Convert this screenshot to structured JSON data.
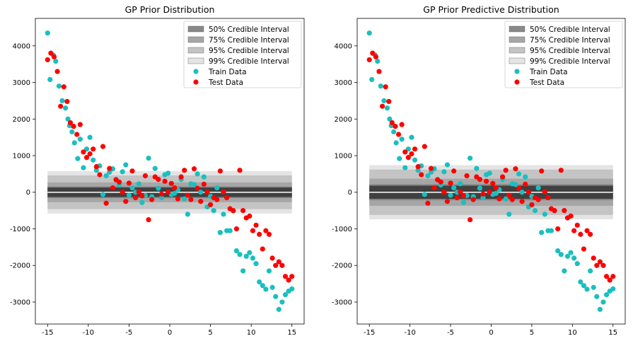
{
  "chart_data": [
    {
      "type": "scatter",
      "title": "GP Prior Distribution",
      "xlabel": "",
      "ylabel": "",
      "xlim": [
        -16.5,
        16.5
      ],
      "ylim": [
        -3600,
        4750
      ],
      "xticks": [
        -15,
        -10,
        -5,
        0,
        5,
        10,
        15
      ],
      "yticks": [
        -3000,
        -2000,
        -1000,
        0,
        1000,
        2000,
        3000,
        4000
      ],
      "grid": false,
      "legend_position": "top-right",
      "band_x_range": [
        -15,
        15
      ],
      "mean": 0,
      "mean_color": "#ffffff",
      "intervals": [
        {
          "label": "99% Credible Interval",
          "half_width": 580,
          "color": "#e4e4e4"
        },
        {
          "label": "95% Credible Interval",
          "half_width": 460,
          "color": "#c4c4c4"
        },
        {
          "label": "75% Credible Interval",
          "half_width": 270,
          "color": "#a6a6a6"
        },
        {
          "label": "50% Credible Interval",
          "half_width": 160,
          "color": "#888888"
        }
      ],
      "center_band": {
        "half_width": 130,
        "color": "#404040"
      },
      "legend": [
        {
          "label": "50% Credible Interval",
          "kind": "patch",
          "color": "#888888"
        },
        {
          "label": "75% Credible Interval",
          "kind": "patch",
          "color": "#a6a6a6"
        },
        {
          "label": "95% Credible Interval",
          "kind": "patch",
          "color": "#c4c4c4"
        },
        {
          "label": "99% Credible Interval",
          "kind": "patch",
          "color": "#e4e4e4"
        },
        {
          "label": "Train Data",
          "kind": "marker",
          "color": "#1abfbf"
        },
        {
          "label": "Test Data",
          "kind": "marker",
          "color": "#ff0000"
        }
      ],
      "series": [
        {
          "name": "Train Data",
          "color": "#1abfbf",
          "x": [
            -15.0,
            -14.7,
            -14.3,
            -14.0,
            -13.6,
            -13.2,
            -12.8,
            -12.5,
            -12.3,
            -12.0,
            -11.7,
            -11.3,
            -11.0,
            -10.6,
            -10.2,
            -9.8,
            -9.4,
            -9.0,
            -8.6,
            -8.2,
            -7.8,
            -7.4,
            -7.0,
            -6.6,
            -6.2,
            -5.8,
            -5.4,
            -5.0,
            -4.6,
            -4.2,
            -3.8,
            -3.4,
            -3.0,
            -2.6,
            -2.2,
            -1.8,
            -1.4,
            -1.0,
            -0.6,
            -0.2,
            0.2,
            0.6,
            1.0,
            1.4,
            1.8,
            2.2,
            2.6,
            3.0,
            3.4,
            3.8,
            4.2,
            4.6,
            5.0,
            5.4,
            5.8,
            6.2,
            6.6,
            7.0,
            7.4,
            7.8,
            8.2,
            8.6,
            9.0,
            9.4,
            9.8,
            10.2,
            10.6,
            11.0,
            11.4,
            11.8,
            12.2,
            12.6,
            13.0,
            13.4,
            13.8,
            14.2,
            14.6,
            15.0
          ],
          "y": [
            4350,
            3080,
            3750,
            3580,
            2900,
            2500,
            2300,
            2000,
            1820,
            1650,
            1350,
            920,
            1450,
            670,
            1180,
            1500,
            880,
            600,
            720,
            -60,
            450,
            550,
            640,
            350,
            200,
            560,
            750,
            -80,
            120,
            0,
            230,
            -280,
            -90,
            930,
            -120,
            650,
            110,
            -150,
            480,
            520,
            -60,
            -30,
            70,
            350,
            -180,
            -600,
            230,
            210,
            500,
            0,
            420,
            -400,
            -110,
            -500,
            120,
            -1100,
            -600,
            -1050,
            -1050,
            -510,
            -1600,
            -1700,
            -2150,
            -1750,
            -1650,
            -1800,
            -1950,
            -2450,
            -2550,
            -2650,
            -2150,
            -2600,
            -2850,
            -3200,
            -3000,
            -2800,
            -2700,
            -2640
          ]
        },
        {
          "name": "Test Data",
          "color": "#ff0000",
          "x": [
            -15.0,
            -14.6,
            -14.2,
            -13.8,
            -13.4,
            -13.0,
            -12.6,
            -12.2,
            -11.8,
            -11.4,
            -11.0,
            -10.6,
            -10.2,
            -9.8,
            -9.4,
            -9.0,
            -8.6,
            -8.2,
            -7.8,
            -7.4,
            -7.0,
            -6.6,
            -6.2,
            -5.8,
            -5.4,
            -5.0,
            -4.6,
            -4.2,
            -3.8,
            -3.4,
            -3.0,
            -2.6,
            -2.2,
            -1.8,
            -1.4,
            -1.0,
            -0.6,
            -0.2,
            0.2,
            0.6,
            1.0,
            1.4,
            1.8,
            2.2,
            2.6,
            3.0,
            3.4,
            3.8,
            4.2,
            4.6,
            5.0,
            5.4,
            5.8,
            6.2,
            6.6,
            7.0,
            7.4,
            7.8,
            8.2,
            8.6,
            9.0,
            9.4,
            9.8,
            10.2,
            10.6,
            11.0,
            11.4,
            11.8,
            12.2,
            12.6,
            13.0,
            13.4,
            13.8,
            14.2,
            14.6,
            15.0
          ],
          "y": [
            3620,
            3800,
            3700,
            3300,
            2350,
            2880,
            2480,
            1900,
            1800,
            1580,
            1850,
            1100,
            950,
            1050,
            1180,
            700,
            480,
            1250,
            -300,
            650,
            120,
            340,
            280,
            0,
            -250,
            250,
            580,
            -150,
            10,
            -100,
            450,
            -750,
            -200,
            420,
            350,
            -50,
            300,
            0,
            240,
            120,
            -180,
            420,
            600,
            -80,
            -200,
            640,
            110,
            -250,
            220,
            0,
            -340,
            -150,
            -200,
            580,
            10,
            -150,
            -450,
            -500,
            -1000,
            600,
            -500,
            -700,
            -650,
            -1050,
            -900,
            -1150,
            -1550,
            -1050,
            -1150,
            -1800,
            -2000,
            -1900,
            -2000,
            -2300,
            -2400,
            -2300
          ]
        }
      ]
    },
    {
      "type": "scatter",
      "title": "GP Prior Predictive Distribution",
      "xlabel": "",
      "ylabel": "",
      "xlim": [
        -16.5,
        16.5
      ],
      "ylim": [
        -3600,
        4750
      ],
      "xticks": [
        -15,
        -10,
        -5,
        0,
        5,
        10,
        15
      ],
      "yticks": [
        -3000,
        -2000,
        -1000,
        0,
        1000,
        2000,
        3000,
        4000
      ],
      "grid": false,
      "legend_position": "top-right",
      "band_x_range": [
        -15,
        15
      ],
      "mean": 0,
      "mean_color": "#ffffff",
      "intervals": [
        {
          "label": "99% Credible Interval",
          "half_width": 740,
          "color": "#e4e4e4"
        },
        {
          "label": "95% Credible Interval",
          "half_width": 620,
          "color": "#c4c4c4"
        },
        {
          "label": "75% Credible Interval",
          "half_width": 370,
          "color": "#a6a6a6"
        },
        {
          "label": "50% Credible Interval",
          "half_width": 220,
          "color": "#888888"
        }
      ],
      "center_band": {
        "half_width": 180,
        "color": "#404040"
      },
      "legend": [
        {
          "label": "50% Credible Interval",
          "kind": "patch",
          "color": "#888888"
        },
        {
          "label": "75% Credible Interval",
          "kind": "patch",
          "color": "#a6a6a6"
        },
        {
          "label": "95% Credible Interval",
          "kind": "patch",
          "color": "#c4c4c4"
        },
        {
          "label": "99% Credible Interval",
          "kind": "patch",
          "color": "#e4e4e4"
        },
        {
          "label": "Train Data",
          "kind": "marker",
          "color": "#1abfbf"
        },
        {
          "label": "Test Data",
          "kind": "marker",
          "color": "#ff0000"
        }
      ],
      "series": [
        {
          "name": "Train Data",
          "color": "#1abfbf",
          "x": [
            -15.0,
            -14.7,
            -14.3,
            -14.0,
            -13.6,
            -13.2,
            -12.8,
            -12.5,
            -12.3,
            -12.0,
            -11.7,
            -11.3,
            -11.0,
            -10.6,
            -10.2,
            -9.8,
            -9.4,
            -9.0,
            -8.6,
            -8.2,
            -7.8,
            -7.4,
            -7.0,
            -6.6,
            -6.2,
            -5.8,
            -5.4,
            -5.0,
            -4.6,
            -4.2,
            -3.8,
            -3.4,
            -3.0,
            -2.6,
            -2.2,
            -1.8,
            -1.4,
            -1.0,
            -0.6,
            -0.2,
            0.2,
            0.6,
            1.0,
            1.4,
            1.8,
            2.2,
            2.6,
            3.0,
            3.4,
            3.8,
            4.2,
            4.6,
            5.0,
            5.4,
            5.8,
            6.2,
            6.6,
            7.0,
            7.4,
            7.8,
            8.2,
            8.6,
            9.0,
            9.4,
            9.8,
            10.2,
            10.6,
            11.0,
            11.4,
            11.8,
            12.2,
            12.6,
            13.0,
            13.4,
            13.8,
            14.2,
            14.6,
            15.0
          ],
          "y": [
            4350,
            3080,
            3750,
            3580,
            2900,
            2500,
            2300,
            2000,
            1820,
            1650,
            1350,
            920,
            1450,
            670,
            1180,
            1500,
            880,
            600,
            720,
            -60,
            450,
            550,
            640,
            350,
            200,
            560,
            750,
            -80,
            120,
            0,
            230,
            -280,
            -90,
            930,
            -120,
            650,
            110,
            -150,
            480,
            520,
            -60,
            -30,
            70,
            350,
            -180,
            -600,
            230,
            210,
            500,
            0,
            420,
            -400,
            -110,
            -500,
            120,
            -1100,
            -600,
            -1050,
            -1050,
            -510,
            -1600,
            -1700,
            -2150,
            -1750,
            -1650,
            -1800,
            -1950,
            -2450,
            -2550,
            -2650,
            -2150,
            -2600,
            -2850,
            -3200,
            -3000,
            -2800,
            -2700,
            -2640
          ]
        },
        {
          "name": "Test Data",
          "color": "#ff0000",
          "x": [
            -15.0,
            -14.6,
            -14.2,
            -13.8,
            -13.4,
            -13.0,
            -12.6,
            -12.2,
            -11.8,
            -11.4,
            -11.0,
            -10.6,
            -10.2,
            -9.8,
            -9.4,
            -9.0,
            -8.6,
            -8.2,
            -7.8,
            -7.4,
            -7.0,
            -6.6,
            -6.2,
            -5.8,
            -5.4,
            -5.0,
            -4.6,
            -4.2,
            -3.8,
            -3.4,
            -3.0,
            -2.6,
            -2.2,
            -1.8,
            -1.4,
            -1.0,
            -0.6,
            -0.2,
            0.2,
            0.6,
            1.0,
            1.4,
            1.8,
            2.2,
            2.6,
            3.0,
            3.4,
            3.8,
            4.2,
            4.6,
            5.0,
            5.4,
            5.8,
            6.2,
            6.6,
            7.0,
            7.4,
            7.8,
            8.2,
            8.6,
            9.0,
            9.4,
            9.8,
            10.2,
            10.6,
            11.0,
            11.4,
            11.8,
            12.2,
            12.6,
            13.0,
            13.4,
            13.8,
            14.2,
            14.6,
            15.0
          ],
          "y": [
            3620,
            3800,
            3700,
            3300,
            2350,
            2880,
            2480,
            1900,
            1800,
            1580,
            1850,
            1100,
            950,
            1050,
            1180,
            700,
            480,
            1250,
            -300,
            650,
            120,
            340,
            280,
            0,
            -250,
            250,
            580,
            -150,
            10,
            -100,
            450,
            -750,
            -200,
            420,
            350,
            -50,
            300,
            0,
            240,
            120,
            -180,
            420,
            600,
            -80,
            -200,
            640,
            110,
            -250,
            220,
            0,
            -340,
            -150,
            -200,
            580,
            10,
            -150,
            -450,
            -500,
            -1000,
            600,
            -500,
            -700,
            -650,
            -1050,
            -900,
            -1150,
            -1550,
            -1050,
            -1150,
            -1800,
            -2000,
            -1900,
            -2000,
            -2300,
            -2400,
            -2300
          ]
        }
      ]
    }
  ]
}
